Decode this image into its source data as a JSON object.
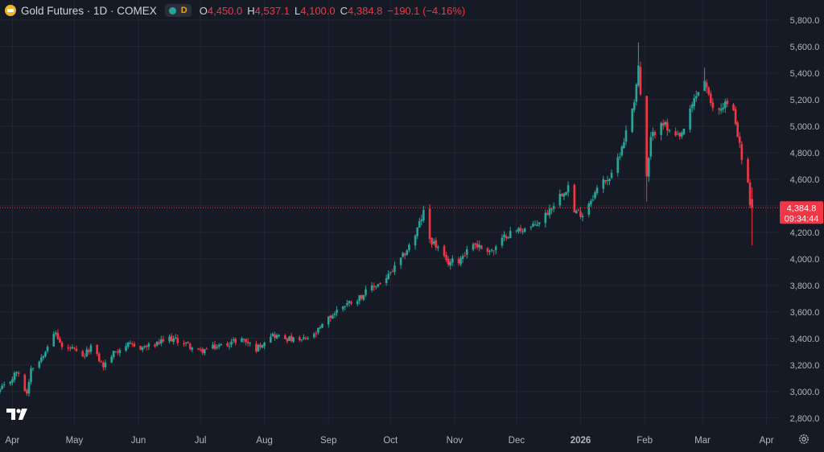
{
  "header": {
    "symbol_title": "Gold Futures · 1D · COMEX",
    "timeframe_badge": "D",
    "ohlc": [
      {
        "key": "O",
        "value": "4,450.0"
      },
      {
        "key": "H",
        "value": "4,537.1"
      },
      {
        "key": "L",
        "value": "4,100.0"
      },
      {
        "key": "C",
        "value": "4,384.8"
      }
    ],
    "change": "−190.1 (−4.16%)"
  },
  "last_price": {
    "label": "4,384.8",
    "countdown": "09:34:44",
    "value": 4384.8
  },
  "colors": {
    "background": "#161a25",
    "grid": "#232733",
    "up": "#26a69a",
    "down": "#f23645",
    "axis_text": "#b2b5be"
  },
  "icons": [
    "gold-logo-icon",
    "timeframe-dot-icon",
    "tradingview-logo-icon",
    "settings-gear-icon"
  ],
  "chart_data": {
    "type": "candlestick",
    "title": "Gold Futures · 1D · COMEX",
    "ylim": [
      2750,
      5950
    ],
    "y_ticks": [
      2800,
      3000,
      3200,
      3400,
      3600,
      3800,
      4000,
      4200,
      4400,
      4600,
      4800,
      5000,
      5200,
      5400,
      5600,
      5800
    ],
    "y_tick_labels": [
      "2,800.0",
      "3,000.0",
      "3,200.0",
      "3,400.0",
      "3,600.0",
      "3,800.0",
      "4,000.0",
      "4,200.0",
      "4,400.0",
      "4,600.0",
      "4,800.0",
      "5,000.0",
      "5,200.0",
      "5,400.0",
      "5,600.0",
      "5,800.0"
    ],
    "x_range": [
      "2025-03-26",
      "2026-04-07"
    ],
    "x_ticks": [
      {
        "label": "Apr",
        "date": "2025-04-01"
      },
      {
        "label": "May",
        "date": "2025-05-01"
      },
      {
        "label": "Jun",
        "date": "2025-06-01"
      },
      {
        "label": "Jul",
        "date": "2025-07-01"
      },
      {
        "label": "Aug",
        "date": "2025-08-01"
      },
      {
        "label": "Sep",
        "date": "2025-09-01"
      },
      {
        "label": "Oct",
        "date": "2025-10-01"
      },
      {
        "label": "Nov",
        "date": "2025-11-01"
      },
      {
        "label": "Dec",
        "date": "2025-12-01"
      },
      {
        "label": "2026",
        "date": "2026-01-01"
      },
      {
        "label": "Feb",
        "date": "2026-02-01"
      },
      {
        "label": "Mar",
        "date": "2026-03-01"
      },
      {
        "label": "Apr",
        "date": "2026-04-01"
      }
    ],
    "grid": true,
    "close_anchors": [
      [
        "2025-03-26",
        3010
      ],
      [
        "2025-03-31",
        3080
      ],
      [
        "2025-04-03",
        3150
      ],
      [
        "2025-04-08",
        2985
      ],
      [
        "2025-04-10",
        3180
      ],
      [
        "2025-04-14",
        3230
      ],
      [
        "2025-04-18",
        3350
      ],
      [
        "2025-04-22",
        3440
      ],
      [
        "2025-04-25",
        3330
      ],
      [
        "2025-04-30",
        3320
      ],
      [
        "2025-05-05",
        3250
      ],
      [
        "2025-05-09",
        3340
      ],
      [
        "2025-05-15",
        3190
      ],
      [
        "2025-05-20",
        3290
      ],
      [
        "2025-05-26",
        3350
      ],
      [
        "2025-06-02",
        3330
      ],
      [
        "2025-06-09",
        3350
      ],
      [
        "2025-06-16",
        3400
      ],
      [
        "2025-06-23",
        3370
      ],
      [
        "2025-06-30",
        3300
      ],
      [
        "2025-07-07",
        3330
      ],
      [
        "2025-07-14",
        3360
      ],
      [
        "2025-07-21",
        3400
      ],
      [
        "2025-07-28",
        3320
      ],
      [
        "2025-08-04",
        3430
      ],
      [
        "2025-08-11",
        3400
      ],
      [
        "2025-08-18",
        3380
      ],
      [
        "2025-08-25",
        3420
      ],
      [
        "2025-09-01",
        3550
      ],
      [
        "2025-09-08",
        3650
      ],
      [
        "2025-09-15",
        3700
      ],
      [
        "2025-09-22",
        3780
      ],
      [
        "2025-09-29",
        3850
      ],
      [
        "2025-10-06",
        3990
      ],
      [
        "2025-10-13",
        4180
      ],
      [
        "2025-10-17",
        4350
      ],
      [
        "2025-10-20",
        4150
      ],
      [
        "2025-10-24",
        4080
      ],
      [
        "2025-10-28",
        3970
      ],
      [
        "2025-11-03",
        3990
      ],
      [
        "2025-11-10",
        4120
      ],
      [
        "2025-11-14",
        4080
      ],
      [
        "2025-11-20",
        4060
      ],
      [
        "2025-11-26",
        4180
      ],
      [
        "2025-12-02",
        4220
      ],
      [
        "2025-12-09",
        4240
      ],
      [
        "2025-12-15",
        4330
      ],
      [
        "2025-12-22",
        4480
      ],
      [
        "2025-12-26",
        4550
      ],
      [
        "2025-12-29",
        4350
      ],
      [
        "2026-01-02",
        4340
      ],
      [
        "2026-01-06",
        4450
      ],
      [
        "2026-01-12",
        4590
      ],
      [
        "2026-01-16",
        4620
      ],
      [
        "2026-01-20",
        4800
      ],
      [
        "2026-01-23",
        4950
      ],
      [
        "2026-01-27",
        5200
      ],
      [
        "2026-01-29",
        5450
      ],
      [
        "2026-02-02",
        4600
      ],
      [
        "2026-02-04",
        4900
      ],
      [
        "2026-02-09",
        5050
      ],
      [
        "2026-02-13",
        4950
      ],
      [
        "2026-02-18",
        4900
      ],
      [
        "2026-02-23",
        5100
      ],
      [
        "2026-02-25",
        5200
      ],
      [
        "2026-03-02",
        5350
      ],
      [
        "2026-03-05",
        5150
      ],
      [
        "2026-03-09",
        5120
      ],
      [
        "2026-03-12",
        5180
      ],
      [
        "2026-03-16",
        5100
      ],
      [
        "2026-03-18",
        4950
      ],
      [
        "2026-03-20",
        4750
      ],
      [
        "2026-03-23",
        4570
      ],
      [
        "2026-03-24",
        4385
      ]
    ],
    "last_candle": {
      "date": "2026-03-25",
      "open": 4450.0,
      "high": 4537.1,
      "low": 4100.0,
      "close": 4384.8
    },
    "extreme_highs": [
      [
        "2026-01-29",
        5630
      ],
      [
        "2026-03-02",
        5440
      ],
      [
        "2025-10-17",
        4400
      ]
    ],
    "extreme_lows": [
      [
        "2026-02-02",
        4430
      ],
      [
        "2025-04-08",
        2970
      ]
    ]
  }
}
